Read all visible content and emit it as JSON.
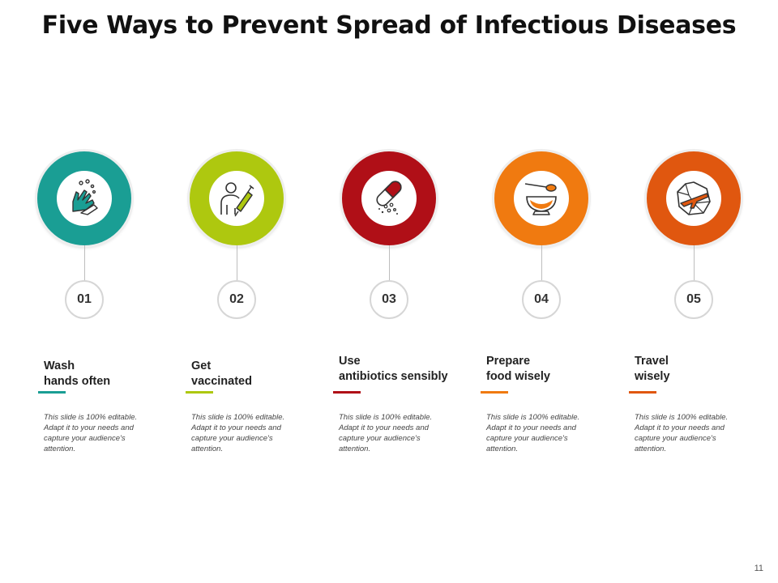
{
  "title": "Five Ways to Prevent Spread of Infectious Diseases",
  "page_number": "11",
  "items": [
    {
      "number": "01",
      "label": "Wash\nhands often",
      "color": "#1a9e94",
      "icon": "washing-hands-icon",
      "description": "This slide is 100% editable. Adapt it to your needs and capture your audience's attention."
    },
    {
      "number": "02",
      "label": "Get\nvaccinated",
      "color": "#aec80f",
      "icon": "vaccine-icon",
      "description": "This slide is 100% editable. Adapt it to your needs and capture your audience's attention."
    },
    {
      "number": "03",
      "label": "Use\nantibiotics sensibly",
      "color": "#b00f17",
      "icon": "pill-icon",
      "description": "This slide is 100% editable. Adapt it to your needs and capture your audience's attention."
    },
    {
      "number": "04",
      "label": "Prepare\nfood wisely",
      "color": "#f07a10",
      "icon": "food-bowl-icon",
      "description": "This slide is 100% editable. Adapt it to your needs and capture your audience's attention."
    },
    {
      "number": "05",
      "label": "Travel\nwisely",
      "color": "#e0570f",
      "icon": "globe-airplane-icon",
      "description": "This slide is 100% editable. Adapt it to your needs and capture your audience's attention."
    }
  ]
}
